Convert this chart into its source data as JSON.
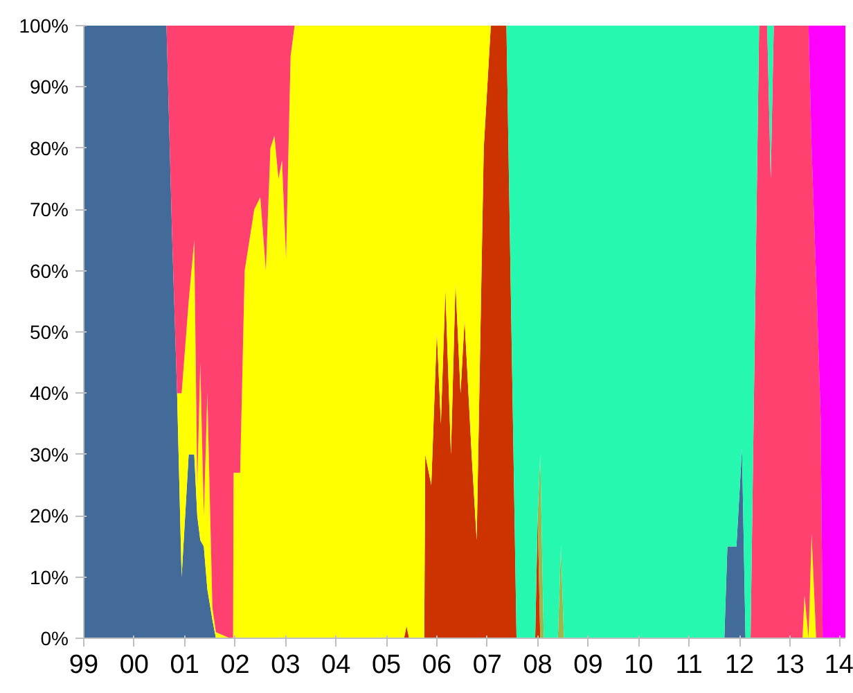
{
  "chart_data": {
    "type": "area",
    "stacked": true,
    "grid": false,
    "x": [
      1999.0,
      2000.0,
      2000.64,
      2000.75,
      2000.85,
      2000.94,
      2001.08,
      2001.19,
      2001.25,
      2001.31,
      2001.38,
      2001.45,
      2001.55,
      2001.62,
      2001.9,
      2001.96,
      2001.97,
      2002.1,
      2002.19,
      2002.38,
      2002.5,
      2002.61,
      2002.7,
      2002.78,
      2002.86,
      2002.93,
      2003.01,
      2003.1,
      2003.18,
      2005.35,
      2005.4,
      2005.45,
      2005.75,
      2005.77,
      2005.89,
      2006.0,
      2006.08,
      2006.17,
      2006.28,
      2006.37,
      2006.47,
      2006.55,
      2006.69,
      2006.79,
      2006.93,
      2007.07,
      2007.38,
      2007.48,
      2007.58,
      2007.95,
      2008.0,
      2008.05,
      2008.12,
      2008.4,
      2008.46,
      2008.52,
      2011.7,
      2011.76,
      2011.94,
      2012.05,
      2012.12,
      2012.22,
      2012.39,
      2012.55,
      2012.62,
      2012.68,
      2013.25,
      2013.29,
      2013.37,
      2013.43,
      2013.52,
      2013.61,
      2013.65,
      2014.1
    ],
    "series": [
      {
        "color": "#426b9a",
        "values": [
          100,
          100,
          100,
          66,
          40,
          10,
          30,
          30,
          20,
          16,
          15,
          8,
          3,
          0,
          null,
          null,
          null,
          null,
          null,
          null,
          null,
          null,
          null,
          null,
          null,
          null,
          null,
          null,
          null,
          null,
          null,
          null,
          null,
          null,
          null,
          null,
          null,
          null,
          null,
          null,
          null,
          null,
          null,
          null,
          null,
          null,
          null,
          null,
          null,
          null,
          null,
          null,
          null,
          null,
          null,
          null,
          0,
          15,
          15,
          31,
          0,
          null,
          null,
          null,
          null,
          null,
          null,
          null,
          null,
          null,
          null,
          null,
          null,
          null
        ]
      },
      {
        "color": "#cc3300",
        "values": [
          null,
          null,
          null,
          null,
          null,
          null,
          null,
          null,
          null,
          null,
          null,
          null,
          null,
          null,
          null,
          null,
          null,
          null,
          null,
          null,
          null,
          null,
          null,
          null,
          null,
          null,
          null,
          null,
          null,
          0,
          2,
          0,
          0,
          30,
          25,
          50,
          35,
          57,
          30,
          58,
          40,
          52,
          30,
          16,
          80,
          100,
          100,
          50,
          0,
          0,
          20,
          0,
          null,
          null,
          null,
          null,
          null,
          null,
          null,
          null,
          null,
          null,
          null,
          null,
          null,
          null,
          null,
          null,
          null,
          null,
          null,
          null,
          null,
          null
        ]
      },
      {
        "color": "#9cb84c",
        "values": [
          null,
          null,
          null,
          null,
          null,
          null,
          null,
          null,
          null,
          null,
          null,
          null,
          null,
          null,
          null,
          null,
          null,
          null,
          null,
          null,
          null,
          null,
          null,
          null,
          null,
          null,
          null,
          null,
          null,
          null,
          null,
          null,
          null,
          null,
          null,
          null,
          null,
          null,
          null,
          null,
          null,
          null,
          null,
          null,
          null,
          null,
          null,
          null,
          null,
          null,
          0,
          30,
          0,
          0,
          15,
          0,
          null,
          null,
          null,
          null,
          null,
          null,
          null,
          null,
          null,
          null,
          null,
          null,
          null,
          null,
          null,
          null,
          null,
          null
        ]
      },
      {
        "color": "#ffff00",
        "values": [
          null,
          null,
          null,
          null,
          0,
          30,
          25,
          35,
          5,
          29,
          5,
          32,
          2,
          1,
          0,
          0,
          27,
          27,
          60,
          70,
          72,
          60,
          80,
          82,
          75,
          78,
          62,
          95,
          100,
          100,
          98,
          100,
          100,
          70,
          75,
          50,
          65,
          43,
          70,
          42,
          60,
          48,
          70,
          84,
          20,
          0,
          null,
          null,
          null,
          null,
          null,
          null,
          null,
          null,
          null,
          null,
          null,
          null,
          null,
          null,
          null,
          null,
          null,
          null,
          null,
          null,
          0,
          7,
          0,
          17,
          0,
          null,
          null,
          null
        ]
      },
      {
        "color": "#ff4170",
        "values": [
          null,
          null,
          0,
          34,
          60,
          60,
          45,
          35,
          75,
          55,
          80,
          60,
          95,
          99,
          100,
          100,
          73,
          73,
          40,
          30,
          28,
          40,
          20,
          18,
          25,
          22,
          38,
          5,
          0,
          null,
          null,
          null,
          null,
          null,
          null,
          null,
          null,
          null,
          null,
          null,
          null,
          null,
          null,
          null,
          null,
          null,
          null,
          null,
          null,
          null,
          null,
          null,
          null,
          null,
          null,
          null,
          null,
          null,
          null,
          null,
          null,
          0,
          100,
          100,
          75,
          100,
          100,
          93,
          100,
          63,
          59,
          36,
          0,
          null
        ]
      },
      {
        "color": "#26f8b0",
        "values": [
          null,
          null,
          null,
          null,
          null,
          null,
          null,
          null,
          null,
          null,
          null,
          null,
          null,
          null,
          null,
          null,
          null,
          null,
          null,
          null,
          null,
          null,
          null,
          null,
          null,
          null,
          null,
          null,
          null,
          null,
          null,
          null,
          null,
          null,
          null,
          null,
          null,
          null,
          null,
          null,
          null,
          null,
          null,
          null,
          null,
          null,
          0,
          50,
          100,
          100,
          80,
          70,
          100,
          100,
          85,
          100,
          100,
          85,
          85,
          69,
          100,
          100,
          0,
          0,
          25,
          0,
          null,
          null,
          null,
          null,
          null,
          null,
          null,
          null
        ]
      },
      {
        "color": "#ff00ff",
        "values": [
          null,
          null,
          null,
          null,
          null,
          null,
          null,
          null,
          null,
          null,
          null,
          null,
          null,
          null,
          null,
          null,
          null,
          null,
          null,
          null,
          null,
          null,
          null,
          null,
          null,
          null,
          null,
          null,
          null,
          null,
          null,
          null,
          null,
          null,
          null,
          null,
          null,
          null,
          null,
          null,
          null,
          null,
          null,
          null,
          null,
          null,
          null,
          null,
          null,
          null,
          null,
          null,
          null,
          null,
          null,
          null,
          null,
          null,
          null,
          null,
          null,
          null,
          null,
          null,
          null,
          null,
          null,
          null,
          0,
          20,
          41,
          64,
          100,
          100
        ]
      }
    ],
    "xlim": [
      1999.0,
      2014.1
    ],
    "xticks": [
      {
        "value": 1999,
        "label": "99"
      },
      {
        "value": 2000,
        "label": "00"
      },
      {
        "value": 2001,
        "label": "01"
      },
      {
        "value": 2002,
        "label": "02"
      },
      {
        "value": 2003,
        "label": "03"
      },
      {
        "value": 2004,
        "label": "04"
      },
      {
        "value": 2005,
        "label": "05"
      },
      {
        "value": 2006,
        "label": "06"
      },
      {
        "value": 2007,
        "label": "07"
      },
      {
        "value": 2008,
        "label": "08"
      },
      {
        "value": 2009,
        "label": "09"
      },
      {
        "value": 2010,
        "label": "10"
      },
      {
        "value": 2011,
        "label": "11"
      },
      {
        "value": 2012,
        "label": "12"
      },
      {
        "value": 2013,
        "label": "13"
      },
      {
        "value": 2014,
        "label": "14"
      }
    ],
    "ylim": [
      0,
      100
    ],
    "yticks": [
      {
        "value": 0,
        "label": "0%"
      },
      {
        "value": 10,
        "label": "10%"
      },
      {
        "value": 20,
        "label": "20%"
      },
      {
        "value": 30,
        "label": "30%"
      },
      {
        "value": 40,
        "label": "40%"
      },
      {
        "value": 50,
        "label": "50%"
      },
      {
        "value": 60,
        "label": "60%"
      },
      {
        "value": 70,
        "label": "70%"
      },
      {
        "value": 80,
        "label": "80%"
      },
      {
        "value": 90,
        "label": "90%"
      },
      {
        "value": 100,
        "label": "100%"
      }
    ]
  }
}
